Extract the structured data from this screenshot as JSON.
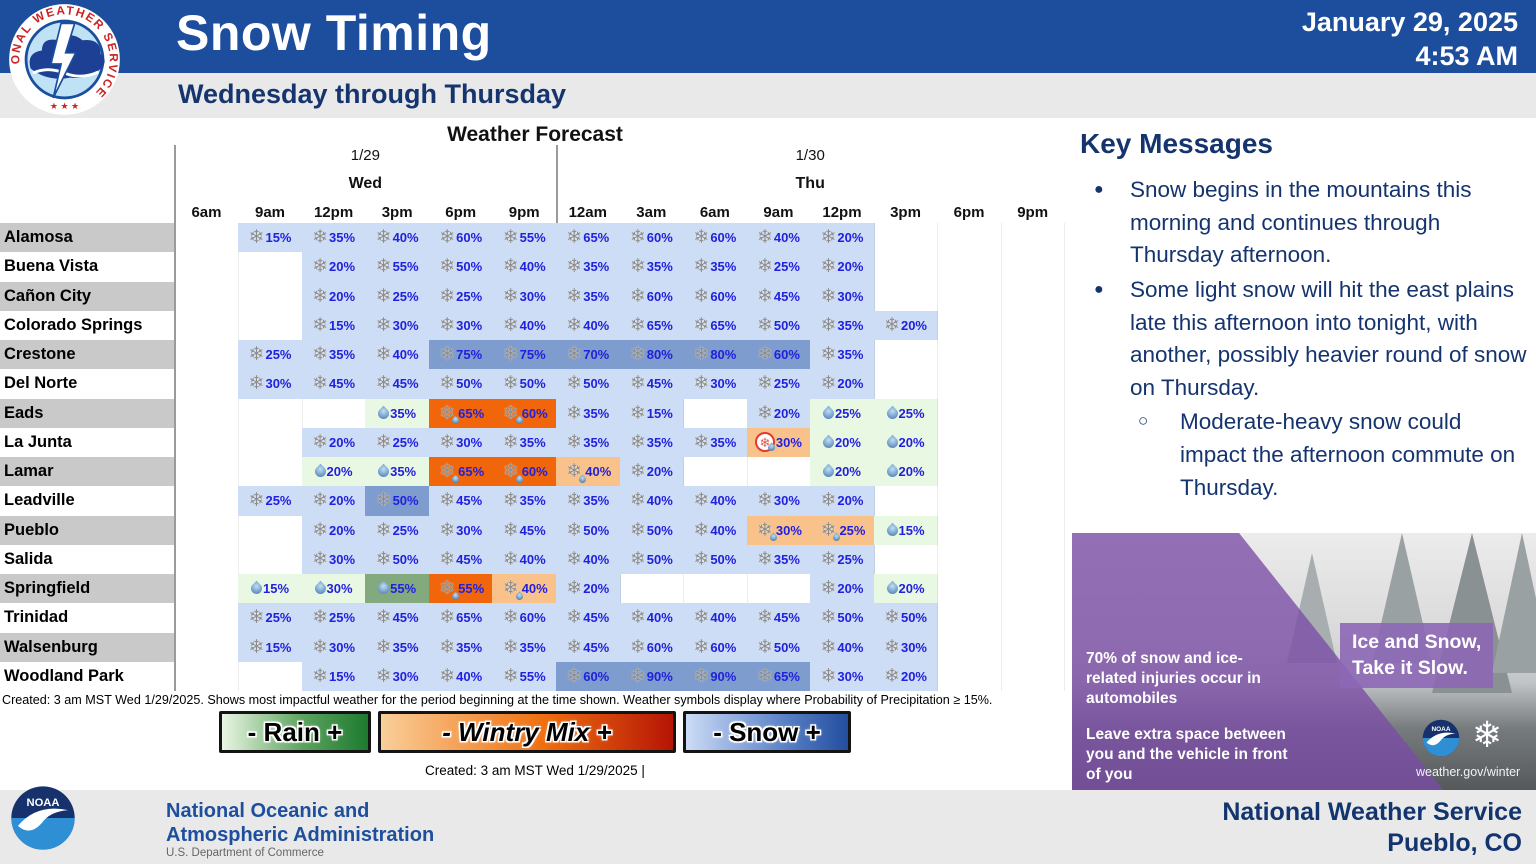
{
  "header": {
    "title": "Snow Timing",
    "subtitle": "Wednesday through Thursday",
    "date": "January 29, 2025",
    "time": "4:53 AM",
    "nws_logo_text": "NATIONAL WEATHER SERVICE",
    "nws_logo_stars": "★ ★ ★"
  },
  "colors": {
    "header_blue": "#1d4e9e",
    "navy_text": "#15346e",
    "pct_blue": "#2121dd",
    "snow-light": "#cdddf6",
    "snow-dark": "#7e9ccd",
    "rain-light": "#e9f8e3",
    "rain-med": "#83a97e",
    "mix-strong": "#f1660a",
    "mix-light": "#fac28b",
    "zr-light": "#fac28b"
  },
  "chart_data": {
    "type": "table",
    "title": "Weather Forecast",
    "columns": [
      "6am",
      "9am",
      "12pm",
      "3pm",
      "6pm",
      "9pm",
      "12am",
      "3am",
      "6am",
      "9am",
      "12pm",
      "3pm",
      "6pm",
      "9pm"
    ],
    "day_groups": [
      {
        "date": "1/29",
        "day": "Wed",
        "span": [
          0,
          5
        ]
      },
      {
        "date": "1/30",
        "day": "Thu",
        "span": [
          6,
          13
        ]
      }
    ],
    "legend": [
      "- Rain +",
      "- Wintry Mix +",
      "- Snow +"
    ],
    "caption": "Created: 3 am MST Wed 1/29/2025. Shows most impactful weather for the period beginning at the time shown. Weather symbols display where Probability of Precipitation ≥ 15%.",
    "created": "Created: 3 am MST Wed 1/29/2025  |",
    "rows": [
      {
        "city": "Alamosa",
        "cells": [
          {
            "c": 1,
            "p": 15,
            "s": "snow-light"
          },
          {
            "c": 2,
            "p": 35,
            "s": "snow-light"
          },
          {
            "c": 3,
            "p": 40,
            "s": "snow-light"
          },
          {
            "c": 4,
            "p": 60,
            "s": "snow-light"
          },
          {
            "c": 5,
            "p": 55,
            "s": "snow-light"
          },
          {
            "c": 6,
            "p": 65,
            "s": "snow-light"
          },
          {
            "c": 7,
            "p": 60,
            "s": "snow-light"
          },
          {
            "c": 8,
            "p": 60,
            "s": "snow-light"
          },
          {
            "c": 9,
            "p": 40,
            "s": "snow-light"
          },
          {
            "c": 10,
            "p": 20,
            "s": "snow-light"
          }
        ]
      },
      {
        "city": "Buena Vista",
        "cells": [
          {
            "c": 2,
            "p": 20,
            "s": "snow-light"
          },
          {
            "c": 3,
            "p": 55,
            "s": "snow-light"
          },
          {
            "c": 4,
            "p": 50,
            "s": "snow-light"
          },
          {
            "c": 5,
            "p": 40,
            "s": "snow-light"
          },
          {
            "c": 6,
            "p": 35,
            "s": "snow-light"
          },
          {
            "c": 7,
            "p": 35,
            "s": "snow-light"
          },
          {
            "c": 8,
            "p": 35,
            "s": "snow-light"
          },
          {
            "c": 9,
            "p": 25,
            "s": "snow-light"
          },
          {
            "c": 10,
            "p": 20,
            "s": "snow-light"
          }
        ]
      },
      {
        "city": "Cañon City",
        "cells": [
          {
            "c": 2,
            "p": 20,
            "s": "snow-light"
          },
          {
            "c": 3,
            "p": 25,
            "s": "snow-light"
          },
          {
            "c": 4,
            "p": 25,
            "s": "snow-light"
          },
          {
            "c": 5,
            "p": 30,
            "s": "snow-light"
          },
          {
            "c": 6,
            "p": 35,
            "s": "snow-light"
          },
          {
            "c": 7,
            "p": 60,
            "s": "snow-light"
          },
          {
            "c": 8,
            "p": 60,
            "s": "snow-light"
          },
          {
            "c": 9,
            "p": 45,
            "s": "snow-light"
          },
          {
            "c": 10,
            "p": 30,
            "s": "snow-light"
          }
        ]
      },
      {
        "city": "Colorado Springs",
        "cells": [
          {
            "c": 2,
            "p": 15,
            "s": "snow-light"
          },
          {
            "c": 3,
            "p": 30,
            "s": "snow-light"
          },
          {
            "c": 4,
            "p": 30,
            "s": "snow-light"
          },
          {
            "c": 5,
            "p": 40,
            "s": "snow-light"
          },
          {
            "c": 6,
            "p": 40,
            "s": "snow-light"
          },
          {
            "c": 7,
            "p": 65,
            "s": "snow-light"
          },
          {
            "c": 8,
            "p": 65,
            "s": "snow-light"
          },
          {
            "c": 9,
            "p": 50,
            "s": "snow-light"
          },
          {
            "c": 10,
            "p": 35,
            "s": "snow-light"
          },
          {
            "c": 11,
            "p": 20,
            "s": "snow-light"
          }
        ]
      },
      {
        "city": "Crestone",
        "cells": [
          {
            "c": 1,
            "p": 25,
            "s": "snow-light"
          },
          {
            "c": 2,
            "p": 35,
            "s": "snow-light"
          },
          {
            "c": 3,
            "p": 40,
            "s": "snow-light"
          },
          {
            "c": 4,
            "p": 75,
            "s": "snow-dark"
          },
          {
            "c": 5,
            "p": 75,
            "s": "snow-dark"
          },
          {
            "c": 6,
            "p": 70,
            "s": "snow-dark"
          },
          {
            "c": 7,
            "p": 80,
            "s": "snow-dark"
          },
          {
            "c": 8,
            "p": 80,
            "s": "snow-dark"
          },
          {
            "c": 9,
            "p": 60,
            "s": "snow-dark"
          },
          {
            "c": 10,
            "p": 35,
            "s": "snow-light"
          }
        ]
      },
      {
        "city": "Del Norte",
        "cells": [
          {
            "c": 1,
            "p": 30,
            "s": "snow-light"
          },
          {
            "c": 2,
            "p": 45,
            "s": "snow-light"
          },
          {
            "c": 3,
            "p": 45,
            "s": "snow-light"
          },
          {
            "c": 4,
            "p": 50,
            "s": "snow-light"
          },
          {
            "c": 5,
            "p": 50,
            "s": "snow-light"
          },
          {
            "c": 6,
            "p": 50,
            "s": "snow-light"
          },
          {
            "c": 7,
            "p": 45,
            "s": "snow-light"
          },
          {
            "c": 8,
            "p": 30,
            "s": "snow-light"
          },
          {
            "c": 9,
            "p": 25,
            "s": "snow-light"
          },
          {
            "c": 10,
            "p": 20,
            "s": "snow-light"
          }
        ]
      },
      {
        "city": "Eads",
        "cells": [
          {
            "c": 3,
            "p": 35,
            "s": "rain-light"
          },
          {
            "c": 4,
            "p": 65,
            "s": "mix-strong"
          },
          {
            "c": 5,
            "p": 60,
            "s": "mix-strong"
          },
          {
            "c": 6,
            "p": 35,
            "s": "snow-light"
          },
          {
            "c": 7,
            "p": 15,
            "s": "snow-light"
          },
          {
            "c": 9,
            "p": 20,
            "s": "snow-light"
          },
          {
            "c": 10,
            "p": 25,
            "s": "rain-light"
          },
          {
            "c": 11,
            "p": 25,
            "s": "rain-light"
          }
        ]
      },
      {
        "city": "La Junta",
        "cells": [
          {
            "c": 2,
            "p": 20,
            "s": "snow-light"
          },
          {
            "c": 3,
            "p": 25,
            "s": "snow-light"
          },
          {
            "c": 4,
            "p": 30,
            "s": "snow-light"
          },
          {
            "c": 5,
            "p": 35,
            "s": "snow-light"
          },
          {
            "c": 6,
            "p": 35,
            "s": "snow-light"
          },
          {
            "c": 7,
            "p": 35,
            "s": "snow-light"
          },
          {
            "c": 8,
            "p": 35,
            "s": "snow-light"
          },
          {
            "c": 9,
            "p": 30,
            "s": "zr-light"
          },
          {
            "c": 10,
            "p": 20,
            "s": "rain-light"
          },
          {
            "c": 11,
            "p": 20,
            "s": "rain-light"
          }
        ]
      },
      {
        "city": "Lamar",
        "cells": [
          {
            "c": 2,
            "p": 20,
            "s": "rain-light"
          },
          {
            "c": 3,
            "p": 35,
            "s": "rain-light"
          },
          {
            "c": 4,
            "p": 65,
            "s": "mix-strong"
          },
          {
            "c": 5,
            "p": 60,
            "s": "mix-strong"
          },
          {
            "c": 6,
            "p": 40,
            "s": "mix-light"
          },
          {
            "c": 7,
            "p": 20,
            "s": "snow-light"
          },
          {
            "c": 10,
            "p": 20,
            "s": "rain-light"
          },
          {
            "c": 11,
            "p": 20,
            "s": "rain-light"
          }
        ]
      },
      {
        "city": "Leadville",
        "cells": [
          {
            "c": 1,
            "p": 25,
            "s": "snow-light"
          },
          {
            "c": 2,
            "p": 20,
            "s": "snow-light"
          },
          {
            "c": 3,
            "p": 50,
            "s": "snow-dark"
          },
          {
            "c": 4,
            "p": 45,
            "s": "snow-light"
          },
          {
            "c": 5,
            "p": 35,
            "s": "snow-light"
          },
          {
            "c": 6,
            "p": 35,
            "s": "snow-light"
          },
          {
            "c": 7,
            "p": 40,
            "s": "snow-light"
          },
          {
            "c": 8,
            "p": 40,
            "s": "snow-light"
          },
          {
            "c": 9,
            "p": 30,
            "s": "snow-light"
          },
          {
            "c": 10,
            "p": 20,
            "s": "snow-light"
          }
        ]
      },
      {
        "city": "Pueblo",
        "cells": [
          {
            "c": 2,
            "p": 20,
            "s": "snow-light"
          },
          {
            "c": 3,
            "p": 25,
            "s": "snow-light"
          },
          {
            "c": 4,
            "p": 30,
            "s": "snow-light"
          },
          {
            "c": 5,
            "p": 45,
            "s": "snow-light"
          },
          {
            "c": 6,
            "p": 50,
            "s": "snow-light"
          },
          {
            "c": 7,
            "p": 50,
            "s": "snow-light"
          },
          {
            "c": 8,
            "p": 40,
            "s": "snow-light"
          },
          {
            "c": 9,
            "p": 30,
            "s": "mix-light"
          },
          {
            "c": 10,
            "p": 25,
            "s": "mix-light"
          },
          {
            "c": 11,
            "p": 15,
            "s": "rain-light"
          }
        ]
      },
      {
        "city": "Salida",
        "cells": [
          {
            "c": 2,
            "p": 30,
            "s": "snow-light"
          },
          {
            "c": 3,
            "p": 50,
            "s": "snow-light"
          },
          {
            "c": 4,
            "p": 45,
            "s": "snow-light"
          },
          {
            "c": 5,
            "p": 40,
            "s": "snow-light"
          },
          {
            "c": 6,
            "p": 40,
            "s": "snow-light"
          },
          {
            "c": 7,
            "p": 50,
            "s": "snow-light"
          },
          {
            "c": 8,
            "p": 50,
            "s": "snow-light"
          },
          {
            "c": 9,
            "p": 35,
            "s": "snow-light"
          },
          {
            "c": 10,
            "p": 25,
            "s": "snow-light"
          }
        ]
      },
      {
        "city": "Springfield",
        "cells": [
          {
            "c": 1,
            "p": 15,
            "s": "rain-light"
          },
          {
            "c": 2,
            "p": 30,
            "s": "rain-light"
          },
          {
            "c": 3,
            "p": 55,
            "s": "rain-med"
          },
          {
            "c": 4,
            "p": 55,
            "s": "mix-strong"
          },
          {
            "c": 5,
            "p": 40,
            "s": "mix-light"
          },
          {
            "c": 6,
            "p": 20,
            "s": "snow-light"
          },
          {
            "c": 10,
            "p": 20,
            "s": "snow-light"
          },
          {
            "c": 11,
            "p": 20,
            "s": "rain-light"
          }
        ]
      },
      {
        "city": "Trinidad",
        "cells": [
          {
            "c": 1,
            "p": 25,
            "s": "snow-light"
          },
          {
            "c": 2,
            "p": 25,
            "s": "snow-light"
          },
          {
            "c": 3,
            "p": 45,
            "s": "snow-light"
          },
          {
            "c": 4,
            "p": 65,
            "s": "snow-light"
          },
          {
            "c": 5,
            "p": 60,
            "s": "snow-light"
          },
          {
            "c": 6,
            "p": 45,
            "s": "snow-light"
          },
          {
            "c": 7,
            "p": 40,
            "s": "snow-light"
          },
          {
            "c": 8,
            "p": 40,
            "s": "snow-light"
          },
          {
            "c": 9,
            "p": 45,
            "s": "snow-light"
          },
          {
            "c": 10,
            "p": 50,
            "s": "snow-light"
          },
          {
            "c": 11,
            "p": 50,
            "s": "snow-light"
          }
        ]
      },
      {
        "city": "Walsenburg",
        "cells": [
          {
            "c": 1,
            "p": 15,
            "s": "snow-light"
          },
          {
            "c": 2,
            "p": 30,
            "s": "snow-light"
          },
          {
            "c": 3,
            "p": 35,
            "s": "snow-light"
          },
          {
            "c": 4,
            "p": 35,
            "s": "snow-light"
          },
          {
            "c": 5,
            "p": 35,
            "s": "snow-light"
          },
          {
            "c": 6,
            "p": 45,
            "s": "snow-light"
          },
          {
            "c": 7,
            "p": 60,
            "s": "snow-light"
          },
          {
            "c": 8,
            "p": 60,
            "s": "snow-light"
          },
          {
            "c": 9,
            "p": 50,
            "s": "snow-light"
          },
          {
            "c": 10,
            "p": 40,
            "s": "snow-light"
          },
          {
            "c": 11,
            "p": 30,
            "s": "snow-light"
          }
        ]
      },
      {
        "city": "Woodland Park",
        "cells": [
          {
            "c": 2,
            "p": 15,
            "s": "snow-light"
          },
          {
            "c": 3,
            "p": 30,
            "s": "snow-light"
          },
          {
            "c": 4,
            "p": 40,
            "s": "snow-light"
          },
          {
            "c": 5,
            "p": 55,
            "s": "snow-light"
          },
          {
            "c": 6,
            "p": 60,
            "s": "snow-dark"
          },
          {
            "c": 7,
            "p": 90,
            "s": "snow-dark"
          },
          {
            "c": 8,
            "p": 90,
            "s": "snow-dark"
          },
          {
            "c": 9,
            "p": 65,
            "s": "snow-dark"
          },
          {
            "c": 10,
            "p": 30,
            "s": "snow-light"
          },
          {
            "c": 11,
            "p": 20,
            "s": "snow-light"
          }
        ]
      }
    ]
  },
  "key_messages": {
    "heading": "Key Messages",
    "bullet1": "Snow begins in the mountains this morning and continues through Thursday afternoon.",
    "bullet2": "Some light snow will hit the east plains late this afternoon into tonight, with another, possibly heavier round of snow on Thursday.",
    "sub_bullet": "Moderate-heavy snow could impact the afternoon commute on Thursday."
  },
  "promo": {
    "stat": "70% of snow and ice-related injuries occur in automobiles",
    "advice": "Leave extra space between you and the vehicle in front of you",
    "slogan_line1": "Ice and Snow,",
    "slogan_line2": "Take it Slow.",
    "url": "weather.gov/winter",
    "snowflake": "❄"
  },
  "footer": {
    "noaa_line1": "National Oceanic and",
    "noaa_line2": "Atmospheric Administration",
    "dept": "U.S. Department of Commerce",
    "office_line1": "National Weather Service",
    "office_line2": "Pueblo, CO",
    "noaa_abbrev": "NOAA"
  }
}
